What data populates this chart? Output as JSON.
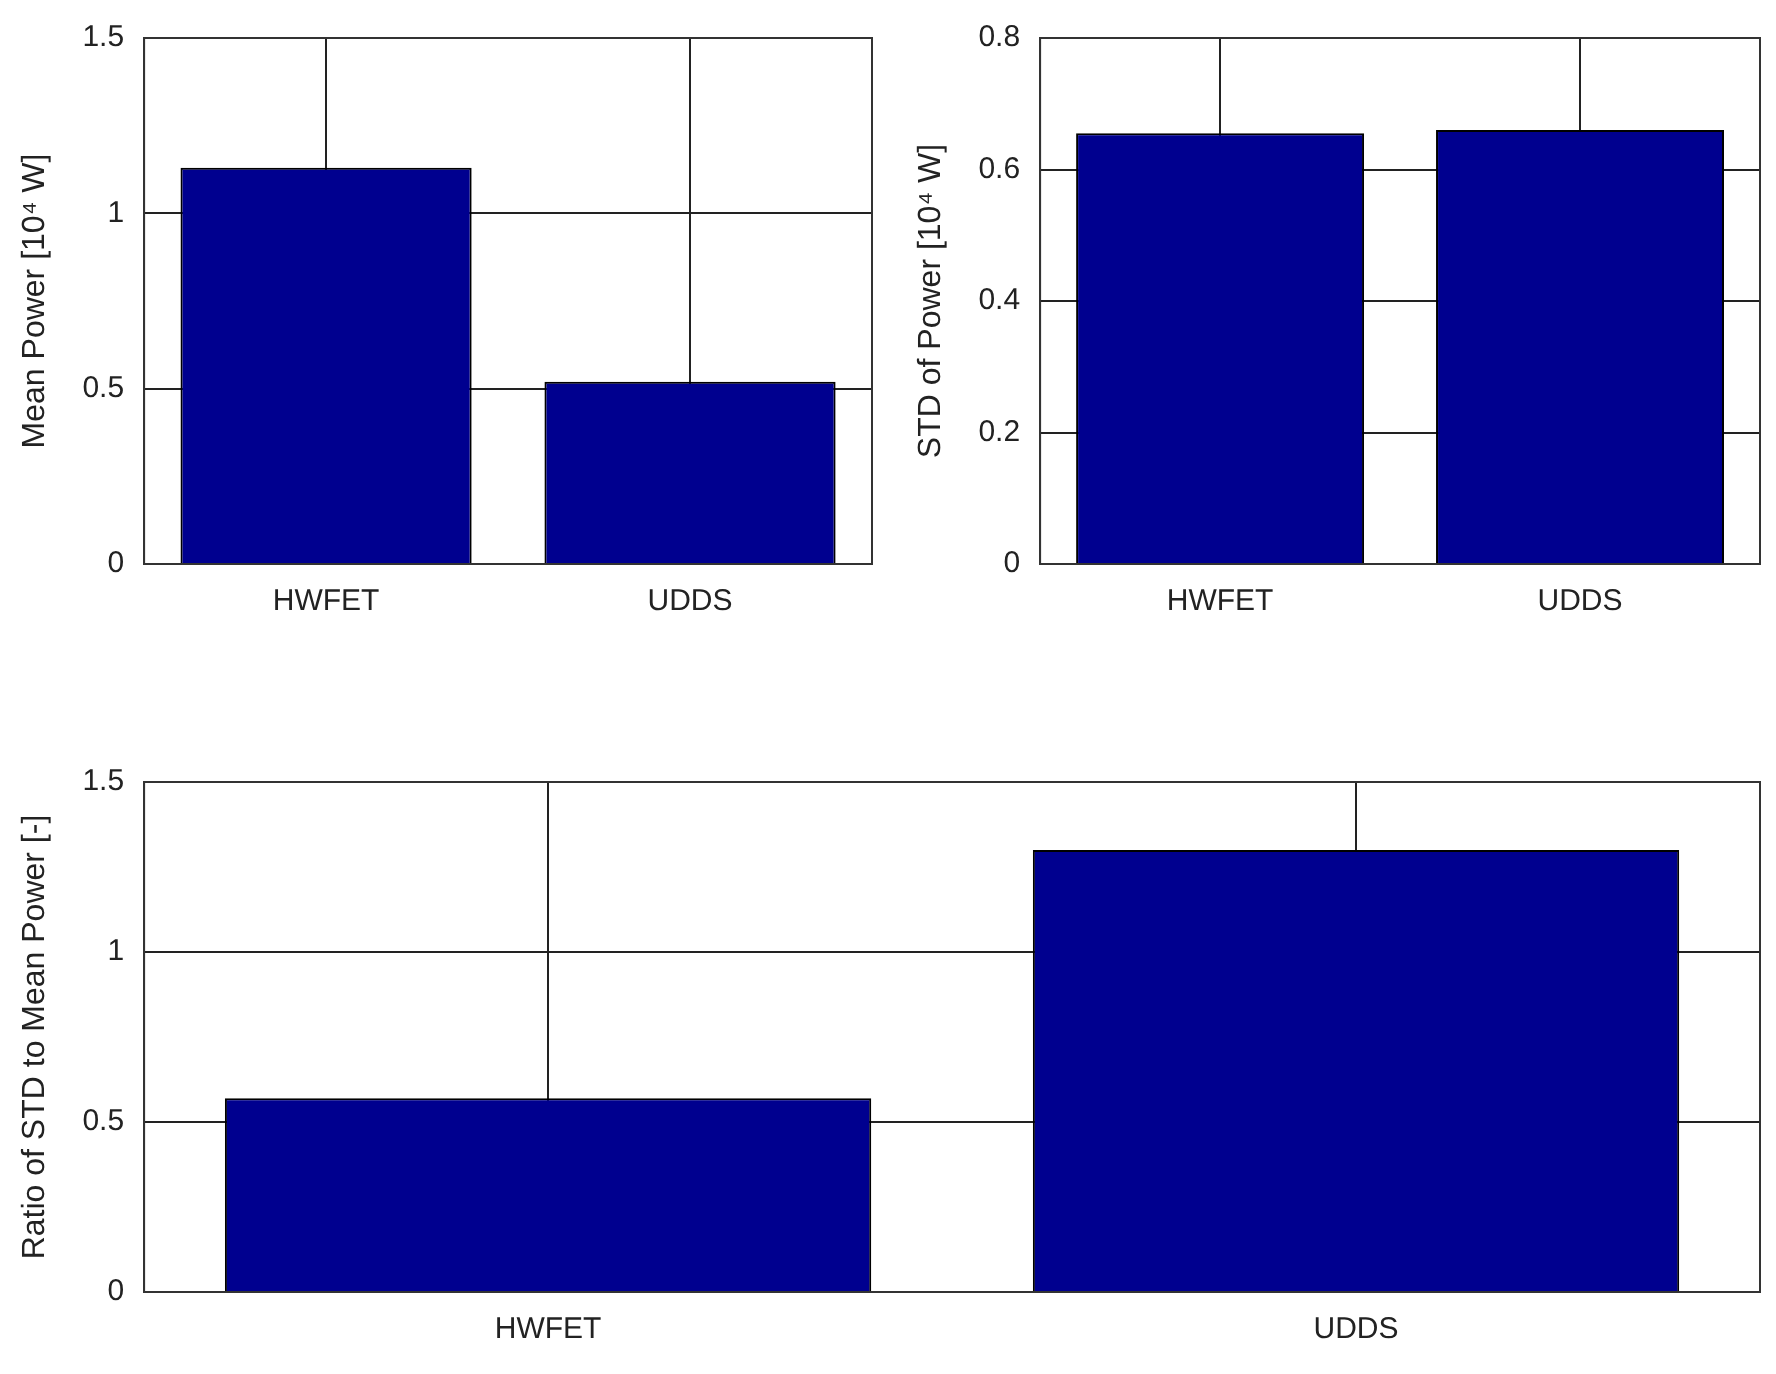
{
  "chart_data": [
    {
      "type": "bar",
      "ylabel": "Mean Power [10⁴ W]",
      "categories": [
        "HWFET",
        "UDDS"
      ],
      "values": [
        1.13,
        0.52
      ],
      "color": "#00008f",
      "ylim": [
        0,
        1.5
      ],
      "yticks": [
        0,
        0.5,
        1,
        1.5
      ],
      "grid": true
    },
    {
      "type": "bar",
      "ylabel": "STD of Power [10⁴ W]",
      "categories": [
        "HWFET",
        "UDDS"
      ],
      "values": [
        0.655,
        0.66
      ],
      "color": "#00008f",
      "ylim": [
        0,
        0.8
      ],
      "yticks": [
        0,
        0.2,
        0.4,
        0.6,
        0.8
      ],
      "grid": true
    },
    {
      "type": "bar",
      "ylabel": "Ratio of STD to Mean Power [-]",
      "categories": [
        "HWFET",
        "UDDS"
      ],
      "values": [
        0.57,
        1.3
      ],
      "color": "#00008f",
      "ylim": [
        0,
        1.5
      ],
      "yticks": [
        0,
        0.5,
        1,
        1.5
      ],
      "grid": true
    }
  ]
}
